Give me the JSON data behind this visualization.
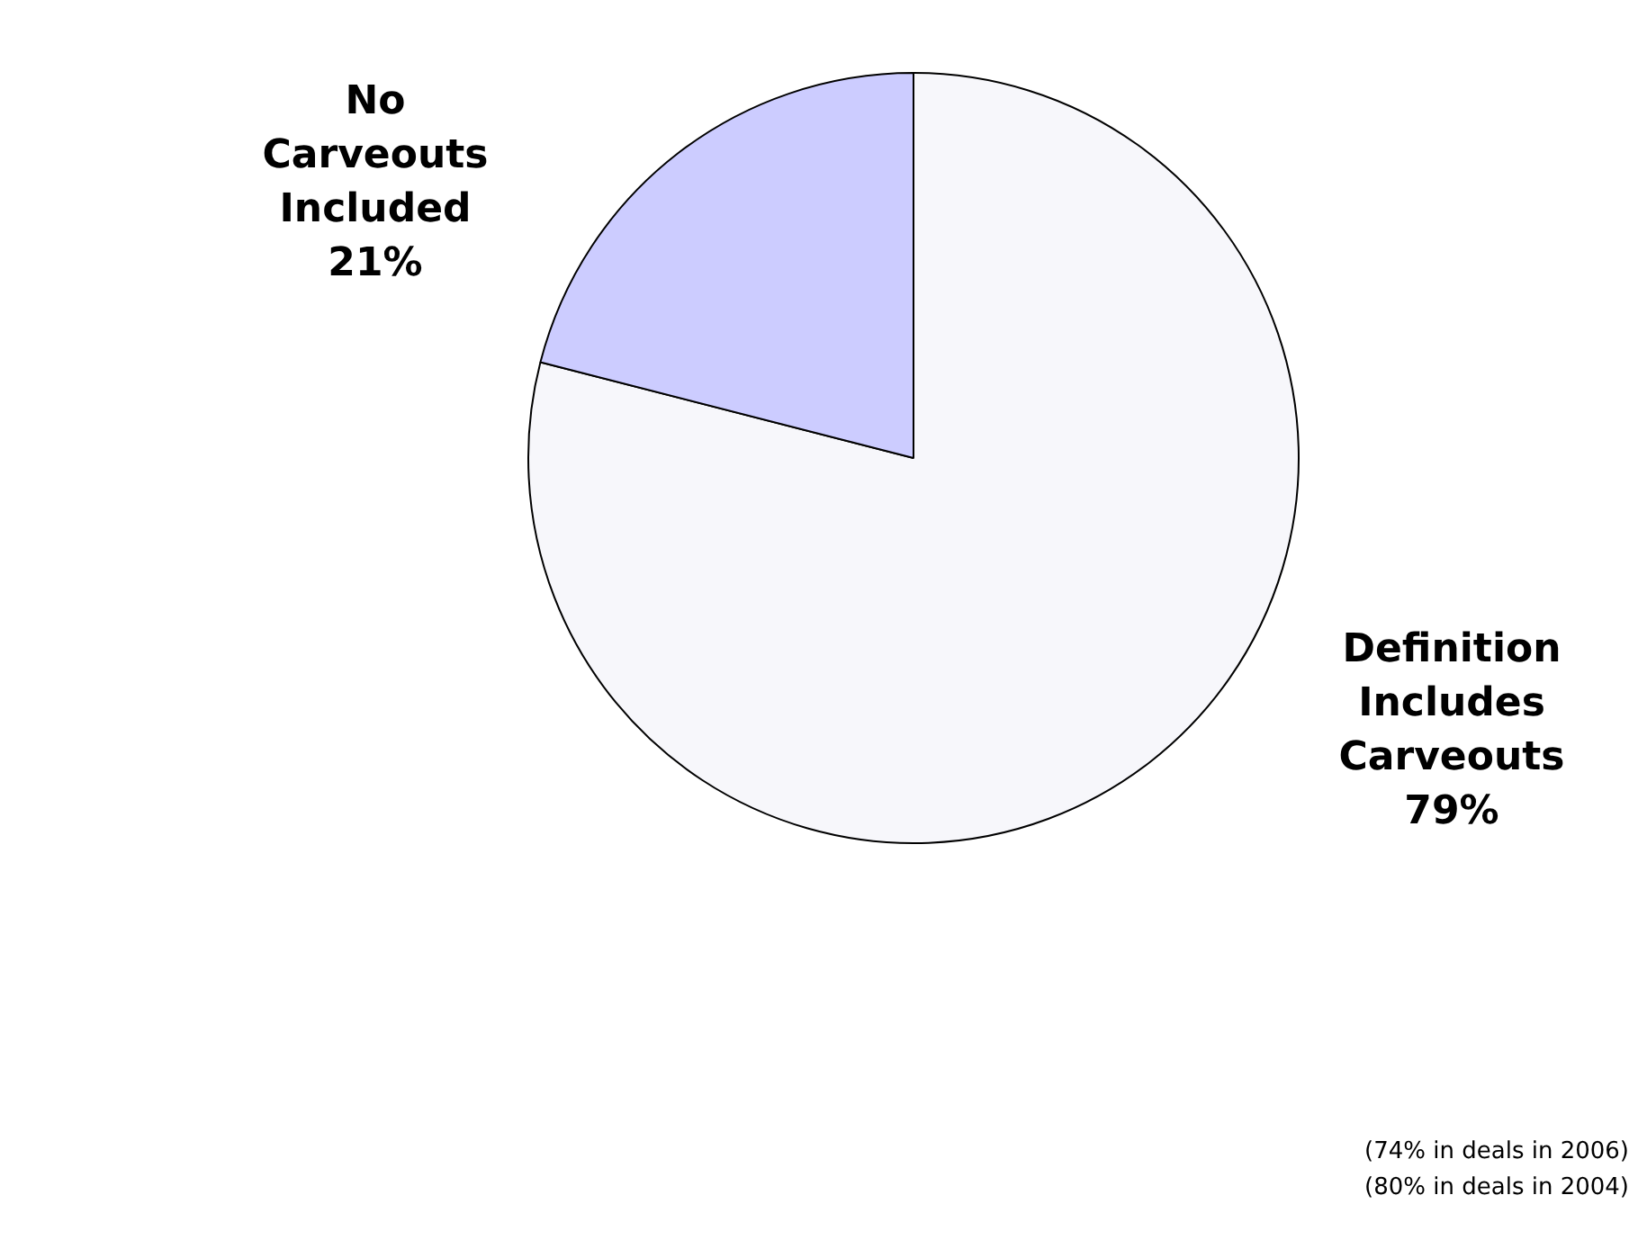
{
  "chart_data": {
    "type": "pie",
    "categories": [
      "Definition Includes Carveouts",
      "No Carveouts Included"
    ],
    "values": [
      79,
      21
    ],
    "colors": [
      "#f7f7fb",
      "#ccccff"
    ],
    "value_labels": [
      "79%",
      "21%"
    ],
    "legend": false,
    "annotations": [
      "(74% in deals in 2006)",
      "(80% in deals in 2004)"
    ]
  }
}
